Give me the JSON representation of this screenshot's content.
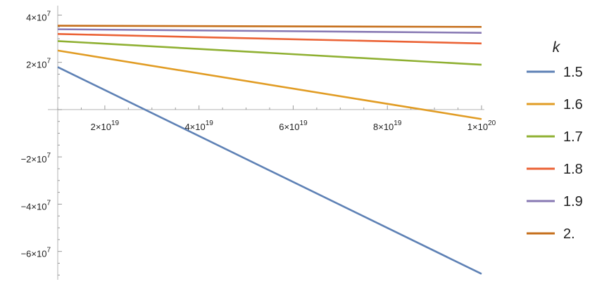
{
  "chart_data": {
    "type": "line",
    "xlim": [
      1e+19,
      1e+20
    ],
    "ylim": [
      -72000000.0,
      44000000.0
    ],
    "x_tick_labels": [
      {
        "value": 2e+19,
        "mantissa": "2",
        "exp": "19"
      },
      {
        "value": 4e+19,
        "mantissa": "4",
        "exp": "19"
      },
      {
        "value": 6e+19,
        "mantissa": "6",
        "exp": "19"
      },
      {
        "value": 8e+19,
        "mantissa": "8",
        "exp": "19"
      },
      {
        "value": 1e+20,
        "mantissa": "1",
        "exp": "20"
      }
    ],
    "y_tick_labels": [
      {
        "value": 40000000.0,
        "mantissa": "4",
        "exp": "7"
      },
      {
        "value": 20000000.0,
        "mantissa": "2",
        "exp": "7"
      },
      {
        "value": -20000000.0,
        "mantissa": "−2",
        "exp": "7"
      },
      {
        "value": -40000000.0,
        "mantissa": "−4",
        "exp": "7"
      },
      {
        "value": -60000000.0,
        "mantissa": "−6",
        "exp": "7"
      }
    ],
    "legend_title": "k",
    "legend_placement": "right",
    "series": [
      {
        "name": "1.5",
        "color": "#5E81B5",
        "x": [
          1e+19,
          1e+20
        ],
        "y": [
          18000000.0,
          -69500000.0
        ]
      },
      {
        "name": "1.6",
        "color": "#E19C24",
        "x": [
          1e+19,
          1e+20
        ],
        "y": [
          25000000.0,
          -4000000.0
        ]
      },
      {
        "name": "1.7",
        "color": "#8FB032",
        "x": [
          1e+19,
          1e+20
        ],
        "y": [
          29000000.0,
          19000000.0
        ]
      },
      {
        "name": "1.8",
        "color": "#EB6235",
        "x": [
          1e+19,
          1e+20
        ],
        "y": [
          32000000.0,
          28000000.0
        ]
      },
      {
        "name": "1.9",
        "color": "#8778B3",
        "x": [
          1e+19,
          1e+20
        ],
        "y": [
          34000000.0,
          32500000.0
        ]
      },
      {
        "name": "2.",
        "color": "#C56E1A",
        "x": [
          1e+19,
          1e+20
        ],
        "y": [
          35500000.0,
          35000000.0
        ]
      }
    ]
  }
}
